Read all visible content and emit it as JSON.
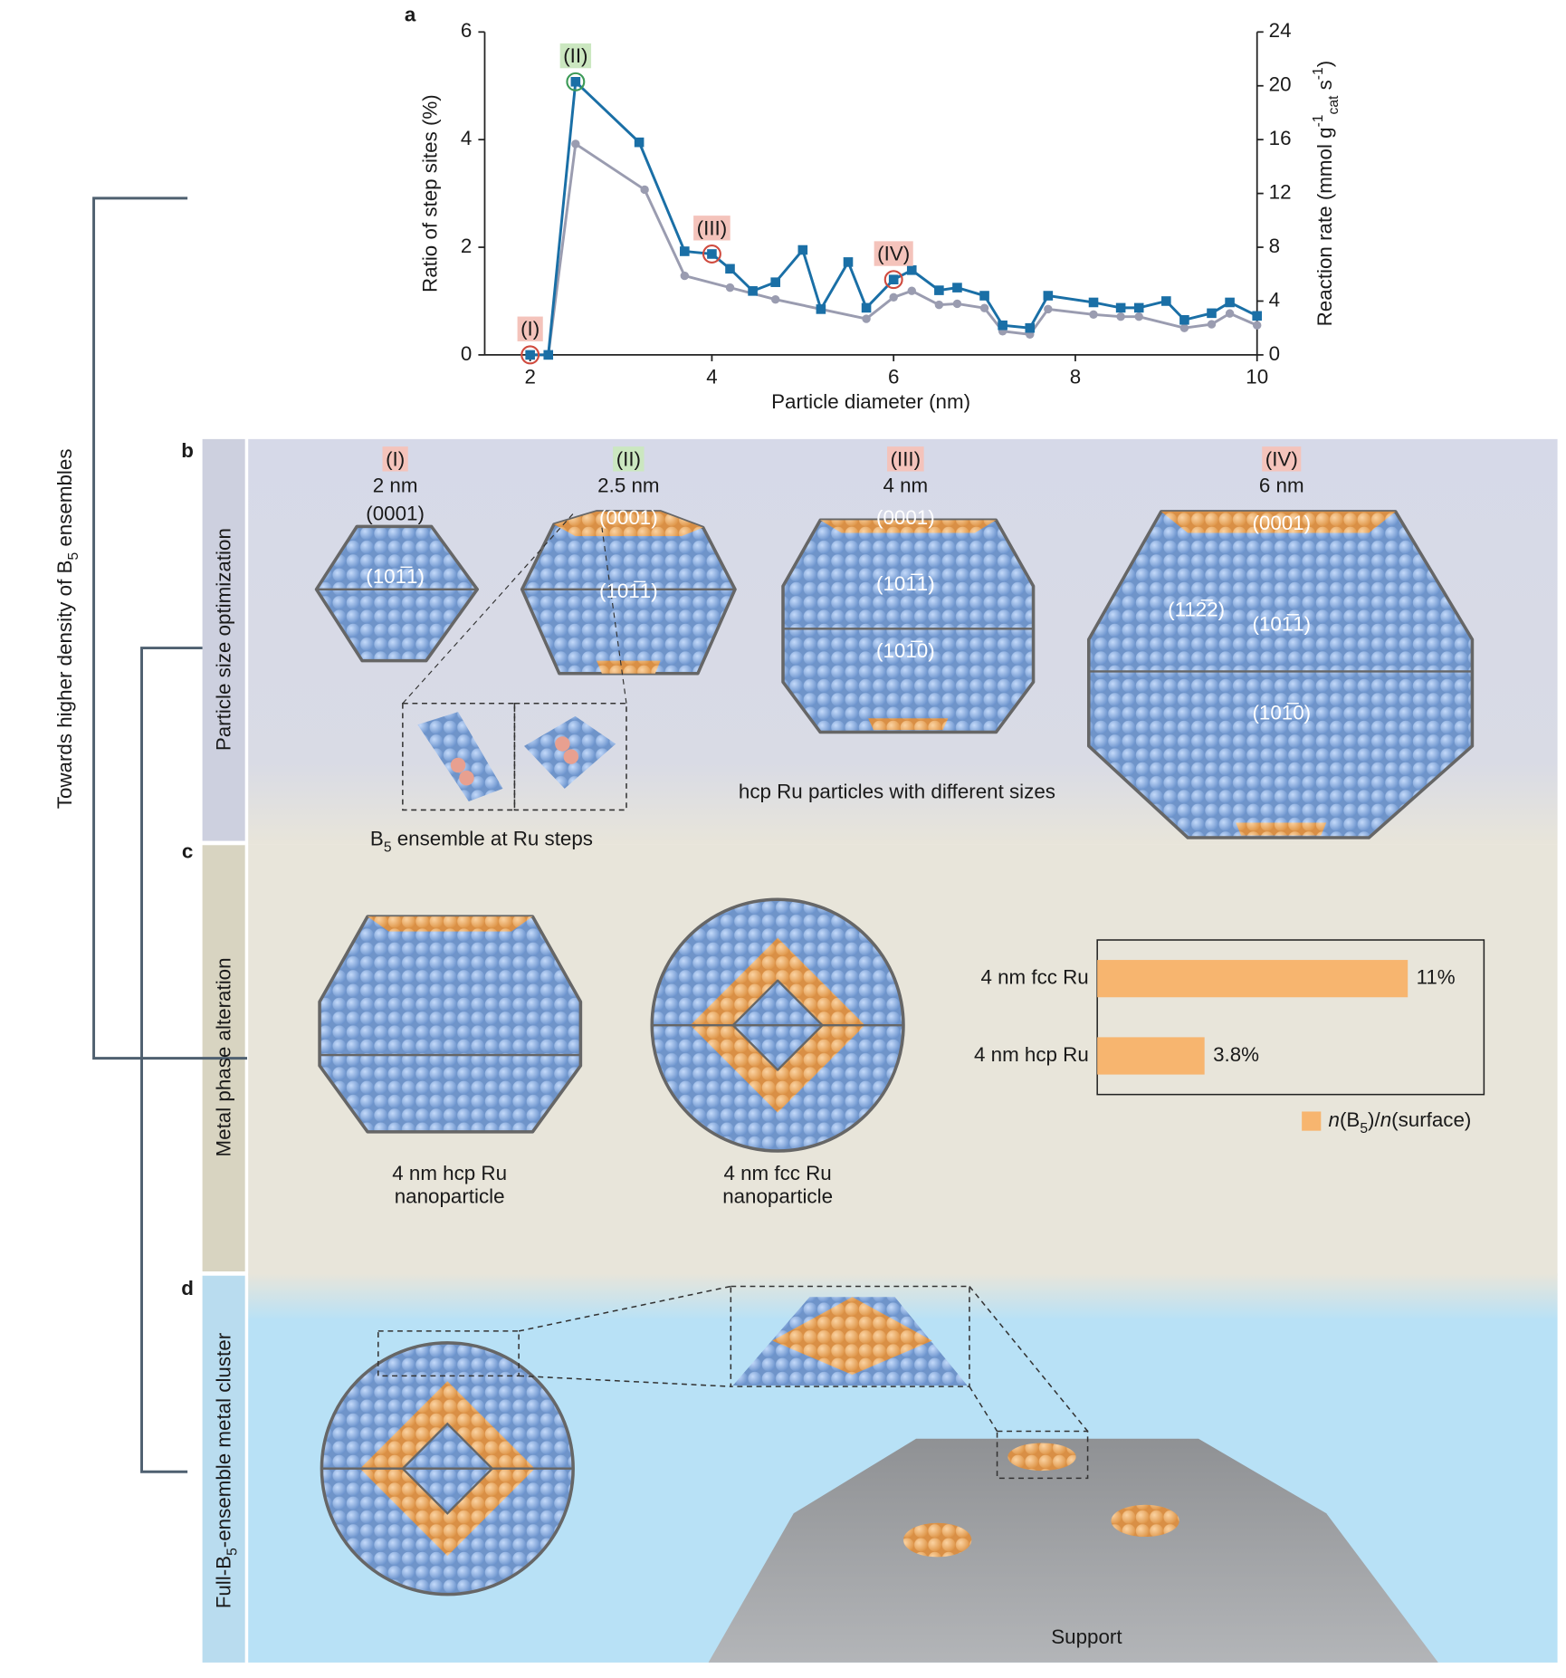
{
  "chart_data": [
    {
      "type": "line",
      "xlabel": "Particle diameter (nm)",
      "ylabel": "Ratio of step sites (%)",
      "y2label": [
        {
          "t": "Reaction rate (mmol g"
        },
        {
          "t": "-1",
          "s": "sup"
        },
        {
          "t": "cat",
          "s": "sub"
        },
        {
          "t": " s"
        },
        {
          "t": "-1",
          "s": "sup"
        },
        {
          "t": ")"
        }
      ],
      "xlim": [
        1.5,
        10
      ],
      "xticks": [
        2,
        4,
        6,
        8,
        10
      ],
      "ylim": [
        0,
        6
      ],
      "yticks": [
        0,
        2,
        4,
        6
      ],
      "y2lim": [
        0,
        24
      ],
      "y2ticks": [
        0,
        4,
        8,
        12,
        16,
        20,
        24
      ],
      "series": [
        {
          "name": "Reaction rate",
          "color": "#1a6fa6",
          "marker": "square",
          "axis": "y2",
          "x": [
            2.0,
            2.2,
            2.5,
            3.2,
            3.7,
            4.0,
            4.2,
            4.45,
            4.7,
            5.0,
            5.2,
            5.5,
            5.7,
            6.0,
            6.2,
            6.5,
            6.7,
            7.0,
            7.2,
            7.5,
            7.7,
            8.2,
            8.5,
            8.7,
            9.0,
            9.2,
            9.5,
            9.7,
            10.0
          ],
          "values": [
            0,
            0,
            20.3,
            15.8,
            7.7,
            7.5,
            6.4,
            4.75,
            5.4,
            7.8,
            3.4,
            6.9,
            3.5,
            5.6,
            6.3,
            4.8,
            5.0,
            4.4,
            2.2,
            2.0,
            4.4,
            3.9,
            3.5,
            3.5,
            4.0,
            2.6,
            3.1,
            3.9,
            2.9
          ]
        },
        {
          "name": "Ratio of step sites",
          "color": "#9a9cb0",
          "marker": "circle",
          "x": [
            2.0,
            2.2,
            2.5,
            3.26,
            3.7,
            4.2,
            4.7,
            5.2,
            5.7,
            6.0,
            6.2,
            6.5,
            6.7,
            7.0,
            7.2,
            7.5,
            7.7,
            8.2,
            8.5,
            8.7,
            9.2,
            9.5,
            9.7,
            10.0
          ],
          "values": [
            0,
            0,
            3.92,
            3.07,
            1.47,
            1.25,
            1.03,
            0.85,
            0.67,
            1.07,
            1.19,
            0.93,
            0.95,
            0.87,
            0.44,
            0.38,
            0.85,
            0.75,
            0.71,
            0.71,
            0.5,
            0.57,
            0.77,
            0.55
          ]
        }
      ],
      "annotations": [
        {
          "text": "(I)",
          "x": 2.0,
          "y": 0,
          "axis": "y2",
          "color": "#f4c3bb",
          "ring": "#cf4a3e"
        },
        {
          "text": "(II)",
          "x": 2.5,
          "y": 20.3,
          "axis": "y2",
          "color": "#cbe7c0",
          "ring": "#3c9a57"
        },
        {
          "text": "(III)",
          "x": 4.0,
          "y": 7.5,
          "axis": "y2",
          "color": "#f4c3bb",
          "ring": "#cf4a3e"
        },
        {
          "text": "(IV)",
          "x": 6.0,
          "y": 5.6,
          "axis": "y2",
          "color": "#f4c3bb",
          "ring": "#cf4a3e"
        }
      ]
    },
    {
      "type": "hbar",
      "categories": [
        "4 nm fcc Ru",
        "4 nm hcp Ru"
      ],
      "values": [
        11,
        3.8
      ],
      "value_labels": [
        "11%",
        "3.8%"
      ],
      "color": "#f7b56f",
      "xlim": [
        0,
        13.7
      ],
      "legend": [
        {
          "t": "n",
          "s": "i"
        },
        {
          "t": "(B"
        },
        {
          "t": "5",
          "s": "sub"
        },
        {
          "t": ")/"
        },
        {
          "t": "n",
          "s": "i"
        },
        {
          "t": "(surface)"
        }
      ]
    }
  ],
  "panel_letters": [
    "a",
    "b",
    "c",
    "d"
  ],
  "bracket_label": [
    {
      "t": "Towards higher density of B"
    },
    {
      "t": "5",
      "s": "sub"
    },
    {
      "t": " ensembles"
    }
  ],
  "side_labels": [
    [
      {
        "t": "Particle size optimization"
      }
    ],
    [
      {
        "t": "Metal phase alteration"
      }
    ],
    [
      {
        "t": "Full-B"
      },
      {
        "t": "5",
        "s": "sub"
      },
      {
        "t": "-ensemble metal cluster"
      }
    ]
  ],
  "particles": [
    {
      "tag": "(I)",
      "tag_color": "#f4c3bb",
      "size": "2 nm",
      "facets": [
        "(0001)",
        "(101̅1)"
      ]
    },
    {
      "tag": "(II)",
      "tag_color": "#cbe7c0",
      "size": "2.5 nm",
      "facets": [
        "(0001)",
        "(101̅1)"
      ]
    },
    {
      "tag": "(III)",
      "tag_color": "#f4c3bb",
      "size": "4 nm",
      "facets": [
        "(0001)",
        "(101̅1)",
        "(101̅0)"
      ]
    },
    {
      "tag": "(IV)",
      "tag_color": "#f4c3bb",
      "size": "6 nm",
      "facets": [
        "(0001)",
        "(112̅2)",
        "(101̅1)",
        "(101̅0)"
      ]
    }
  ],
  "ensemble_caption": [
    {
      "t": "B"
    },
    {
      "t": "5",
      "s": "sub"
    },
    {
      "t": " ensemble at Ru steps"
    }
  ],
  "hcp_caption": "hcp Ru particles with different sizes",
  "phase_captions": [
    [
      "4 nm hcp Ru",
      "nanoparticle"
    ],
    [
      "4 nm fcc Ru",
      "nanoparticle"
    ]
  ],
  "support": "Support"
}
